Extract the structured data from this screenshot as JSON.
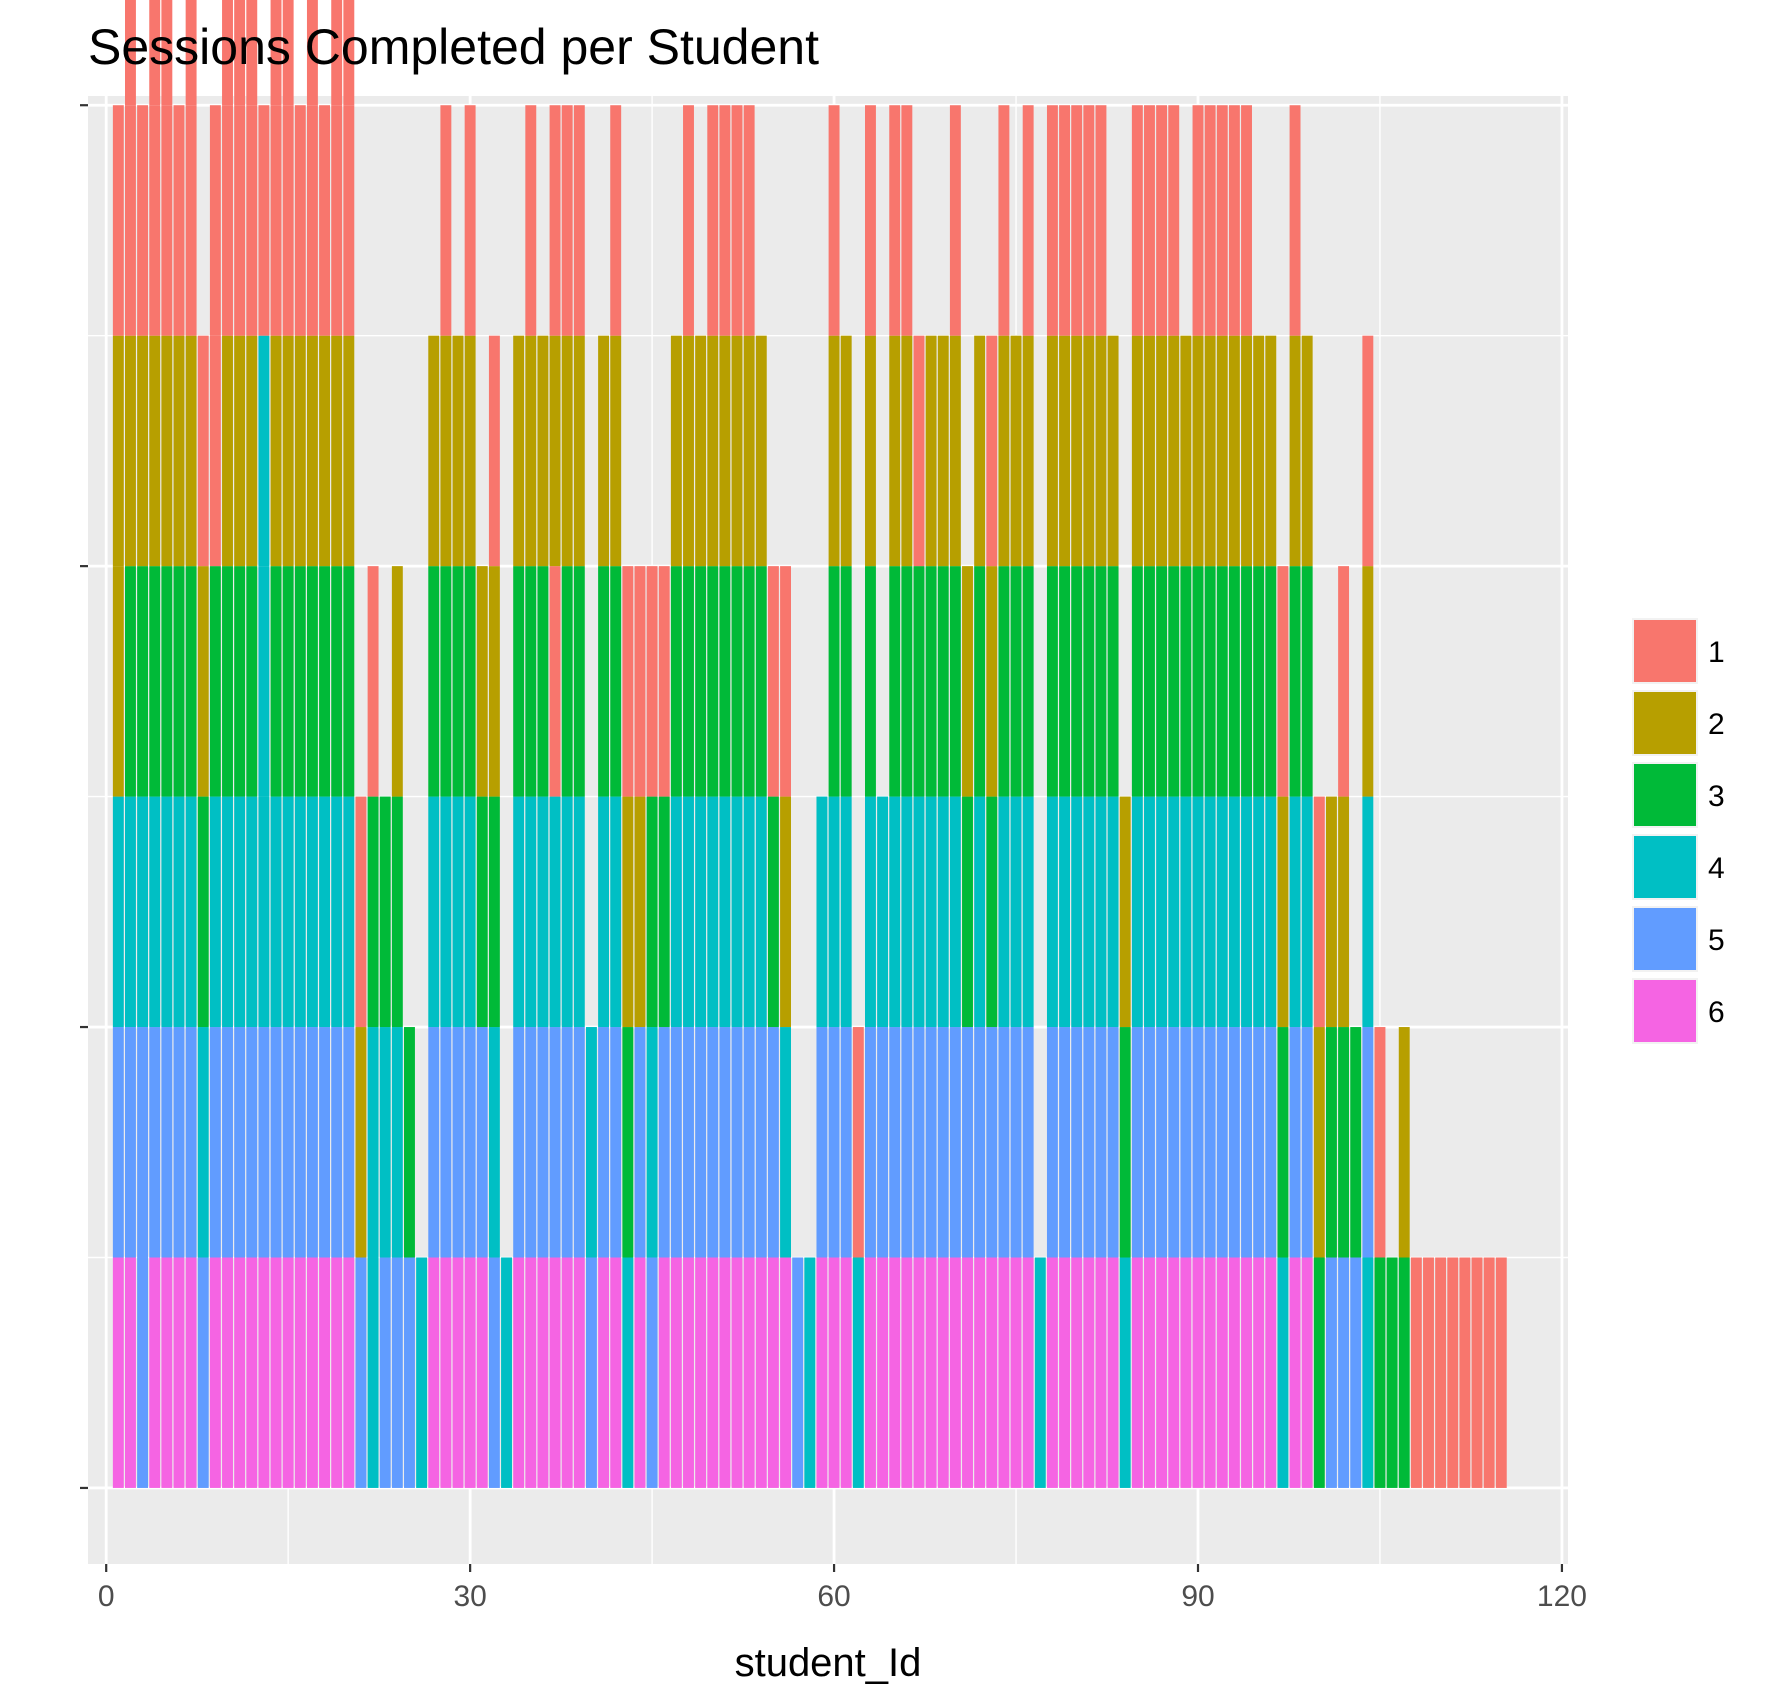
{
  "chart_data": {
    "type": "bar",
    "title": "Sessions Completed per Student",
    "xlabel": "student_Id",
    "ylabel": "",
    "xlim": [
      -1.5,
      120.5
    ],
    "ylim": [
      -0.33,
      6.04
    ],
    "x_ticks": [
      0,
      30,
      60,
      90,
      120
    ],
    "x_tick_labels": [
      "0",
      "30",
      "60",
      "90",
      "120"
    ],
    "y_ticks": [
      0,
      2,
      4,
      6
    ],
    "y_tick_labels": [
      "",
      "",
      "",
      ""
    ],
    "grid": true,
    "legend_position": "right",
    "legend": {
      "title": "",
      "entries": [
        {
          "label": "1",
          "color": "#F8766D"
        },
        {
          "label": "2",
          "color": "#B79F00"
        },
        {
          "label": "3",
          "color": "#00BA38"
        },
        {
          "label": "4",
          "color": "#00BFC4"
        },
        {
          "label": "5",
          "color": "#619CFF"
        },
        {
          "label": "6",
          "color": "#F564E3"
        }
      ]
    },
    "bar_segments_note": "Each student id (1-115) has a stacked bar of unit segments; the segment at stack position k (1 = bottom) shows the session category indicated by the color code. Sequences are listed bottom to top.",
    "stacks": {
      "1": [
        6,
        5,
        4,
        2,
        2,
        1
      ],
      "2": [
        6,
        5,
        4,
        3,
        2,
        1,
        1
      ],
      "3": [
        5,
        5,
        4,
        3,
        2,
        1
      ],
      "4": [
        6,
        5,
        4,
        3,
        2,
        1,
        1
      ],
      "5": [
        6,
        5,
        4,
        3,
        2,
        1,
        1
      ],
      "6": [
        6,
        5,
        4,
        3,
        2,
        1
      ],
      "7": [
        6,
        5,
        4,
        3,
        2,
        1,
        1
      ],
      "8": [
        5,
        4,
        3,
        2,
        1
      ],
      "9": [
        6,
        5,
        4,
        3,
        1,
        1
      ],
      "10": [
        6,
        5,
        4,
        3,
        2,
        1,
        1
      ],
      "11": [
        6,
        5,
        4,
        3,
        2,
        1,
        1
      ],
      "12": [
        6,
        5,
        4,
        3,
        2,
        1,
        1
      ],
      "13": [
        6,
        5,
        4,
        4,
        4,
        1
      ],
      "14": [
        6,
        5,
        4,
        3,
        2,
        1,
        1
      ],
      "15": [
        6,
        5,
        4,
        3,
        2,
        1,
        1
      ],
      "16": [
        6,
        5,
        4,
        3,
        2,
        1
      ],
      "17": [
        6,
        5,
        4,
        3,
        2,
        1,
        1
      ],
      "18": [
        6,
        5,
        4,
        3,
        2,
        1
      ],
      "19": [
        6,
        5,
        4,
        3,
        2,
        1,
        1
      ],
      "20": [
        6,
        5,
        4,
        3,
        2,
        1,
        1
      ],
      "21": [
        5,
        2,
        1
      ],
      "22": [
        4,
        4,
        3,
        1
      ],
      "23": [
        5,
        4,
        3
      ],
      "24": [
        5,
        4,
        3,
        2
      ],
      "25": [
        5,
        3
      ],
      "26": [
        4
      ],
      "27": [
        6,
        5,
        4,
        3,
        2
      ],
      "28": [
        6,
        5,
        4,
        3,
        2,
        1
      ],
      "29": [
        6,
        5,
        4,
        3,
        2
      ],
      "30": [
        6,
        5,
        4,
        3,
        2,
        1
      ],
      "31": [
        6,
        5,
        3,
        2
      ],
      "32": [
        5,
        4,
        3,
        2,
        1
      ],
      "33": [
        4
      ],
      "34": [
        6,
        5,
        4,
        3,
        2
      ],
      "35": [
        6,
        5,
        4,
        3,
        2,
        1
      ],
      "36": [
        6,
        5,
        4,
        3,
        2
      ],
      "37": [
        6,
        5,
        4,
        1,
        2,
        1
      ],
      "38": [
        6,
        5,
        4,
        3,
        2,
        1
      ],
      "39": [
        6,
        5,
        4,
        3,
        2,
        1
      ],
      "40": [
        5,
        4
      ],
      "41": [
        6,
        5,
        4,
        3,
        2
      ],
      "42": [
        6,
        5,
        4,
        3,
        2,
        1
      ],
      "43": [
        4,
        3,
        2,
        1
      ],
      "44": [
        6,
        5,
        2,
        1
      ],
      "45": [
        5,
        4,
        3,
        1
      ],
      "46": [
        6,
        5,
        3,
        1
      ],
      "47": [
        6,
        5,
        4,
        3,
        2
      ],
      "48": [
        6,
        5,
        4,
        3,
        2,
        1
      ],
      "49": [
        6,
        5,
        4,
        3,
        2
      ],
      "50": [
        6,
        5,
        4,
        3,
        2,
        1
      ],
      "51": [
        6,
        5,
        4,
        3,
        2,
        1
      ],
      "52": [
        6,
        5,
        4,
        3,
        2,
        1
      ],
      "53": [
        6,
        5,
        4,
        3,
        2,
        1
      ],
      "54": [
        6,
        5,
        4,
        3,
        2
      ],
      "55": [
        6,
        5,
        3,
        1
      ],
      "56": [
        6,
        4,
        2,
        1
      ],
      "57": [
        5
      ],
      "58": [
        4
      ],
      "59": [
        6,
        5,
        4
      ],
      "60": [
        6,
        5,
        4,
        3,
        2,
        1
      ],
      "61": [
        6,
        5,
        4,
        3,
        2
      ],
      "62": [
        4,
        1
      ],
      "63": [
        6,
        5,
        4,
        3,
        2,
        1
      ],
      "64": [
        6,
        5,
        4
      ],
      "65": [
        6,
        5,
        4,
        3,
        2,
        1
      ],
      "66": [
        6,
        5,
        4,
        3,
        2,
        1
      ],
      "67": [
        6,
        5,
        4,
        3,
        1
      ],
      "68": [
        6,
        5,
        4,
        3,
        2
      ],
      "69": [
        6,
        5,
        4,
        3,
        2
      ],
      "70": [
        6,
        5,
        4,
        3,
        2,
        1
      ],
      "71": [
        6,
        5,
        3,
        2
      ],
      "72": [
        6,
        5,
        4,
        3,
        2
      ],
      "73": [
        6,
        5,
        3,
        2,
        1
      ],
      "74": [
        6,
        5,
        4,
        3,
        2,
        1
      ],
      "75": [
        6,
        5,
        4,
        3,
        2
      ],
      "76": [
        6,
        5,
        4,
        3,
        2,
        1
      ],
      "77": [
        4
      ],
      "78": [
        6,
        5,
        4,
        3,
        2,
        1
      ],
      "79": [
        6,
        5,
        4,
        3,
        2,
        1
      ],
      "80": [
        6,
        5,
        4,
        3,
        2,
        1
      ],
      "81": [
        6,
        5,
        4,
        3,
        2,
        1
      ],
      "82": [
        6,
        5,
        4,
        3,
        2,
        1
      ],
      "83": [
        6,
        5,
        4,
        3,
        2
      ],
      "84": [
        4,
        3,
        2
      ],
      "85": [
        6,
        5,
        4,
        3,
        2,
        1
      ],
      "86": [
        6,
        5,
        4,
        3,
        2,
        1
      ],
      "87": [
        6,
        5,
        4,
        3,
        2,
        1
      ],
      "88": [
        6,
        5,
        4,
        3,
        2,
        1
      ],
      "89": [
        6,
        5,
        4,
        3,
        2
      ],
      "90": [
        6,
        5,
        4,
        3,
        2,
        1
      ],
      "91": [
        6,
        5,
        4,
        3,
        2,
        1
      ],
      "92": [
        6,
        5,
        4,
        3,
        2,
        1
      ],
      "93": [
        6,
        5,
        4,
        3,
        2,
        1
      ],
      "94": [
        6,
        5,
        4,
        3,
        2,
        1
      ],
      "95": [
        6,
        5,
        4,
        3,
        2
      ],
      "96": [
        6,
        5,
        4,
        3,
        2
      ],
      "97": [
        4,
        3,
        2,
        1
      ],
      "98": [
        6,
        5,
        4,
        3,
        2,
        1
      ],
      "99": [
        6,
        5,
        4,
        3,
        2
      ],
      "100": [
        3,
        2,
        1
      ],
      "101": [
        5,
        3,
        2
      ],
      "102": [
        5,
        3,
        2,
        1
      ],
      "103": [
        5,
        3
      ],
      "104": [
        4,
        5,
        4,
        2,
        1
      ],
      "105": [
        3,
        1
      ],
      "106": [
        3
      ],
      "107": [
        3,
        2
      ],
      "108": [
        1
      ],
      "109": [
        1
      ],
      "110": [
        1
      ],
      "111": [
        1
      ],
      "112": [
        1
      ],
      "113": [
        1
      ],
      "114": [
        1
      ],
      "115": [
        1
      ]
    }
  }
}
